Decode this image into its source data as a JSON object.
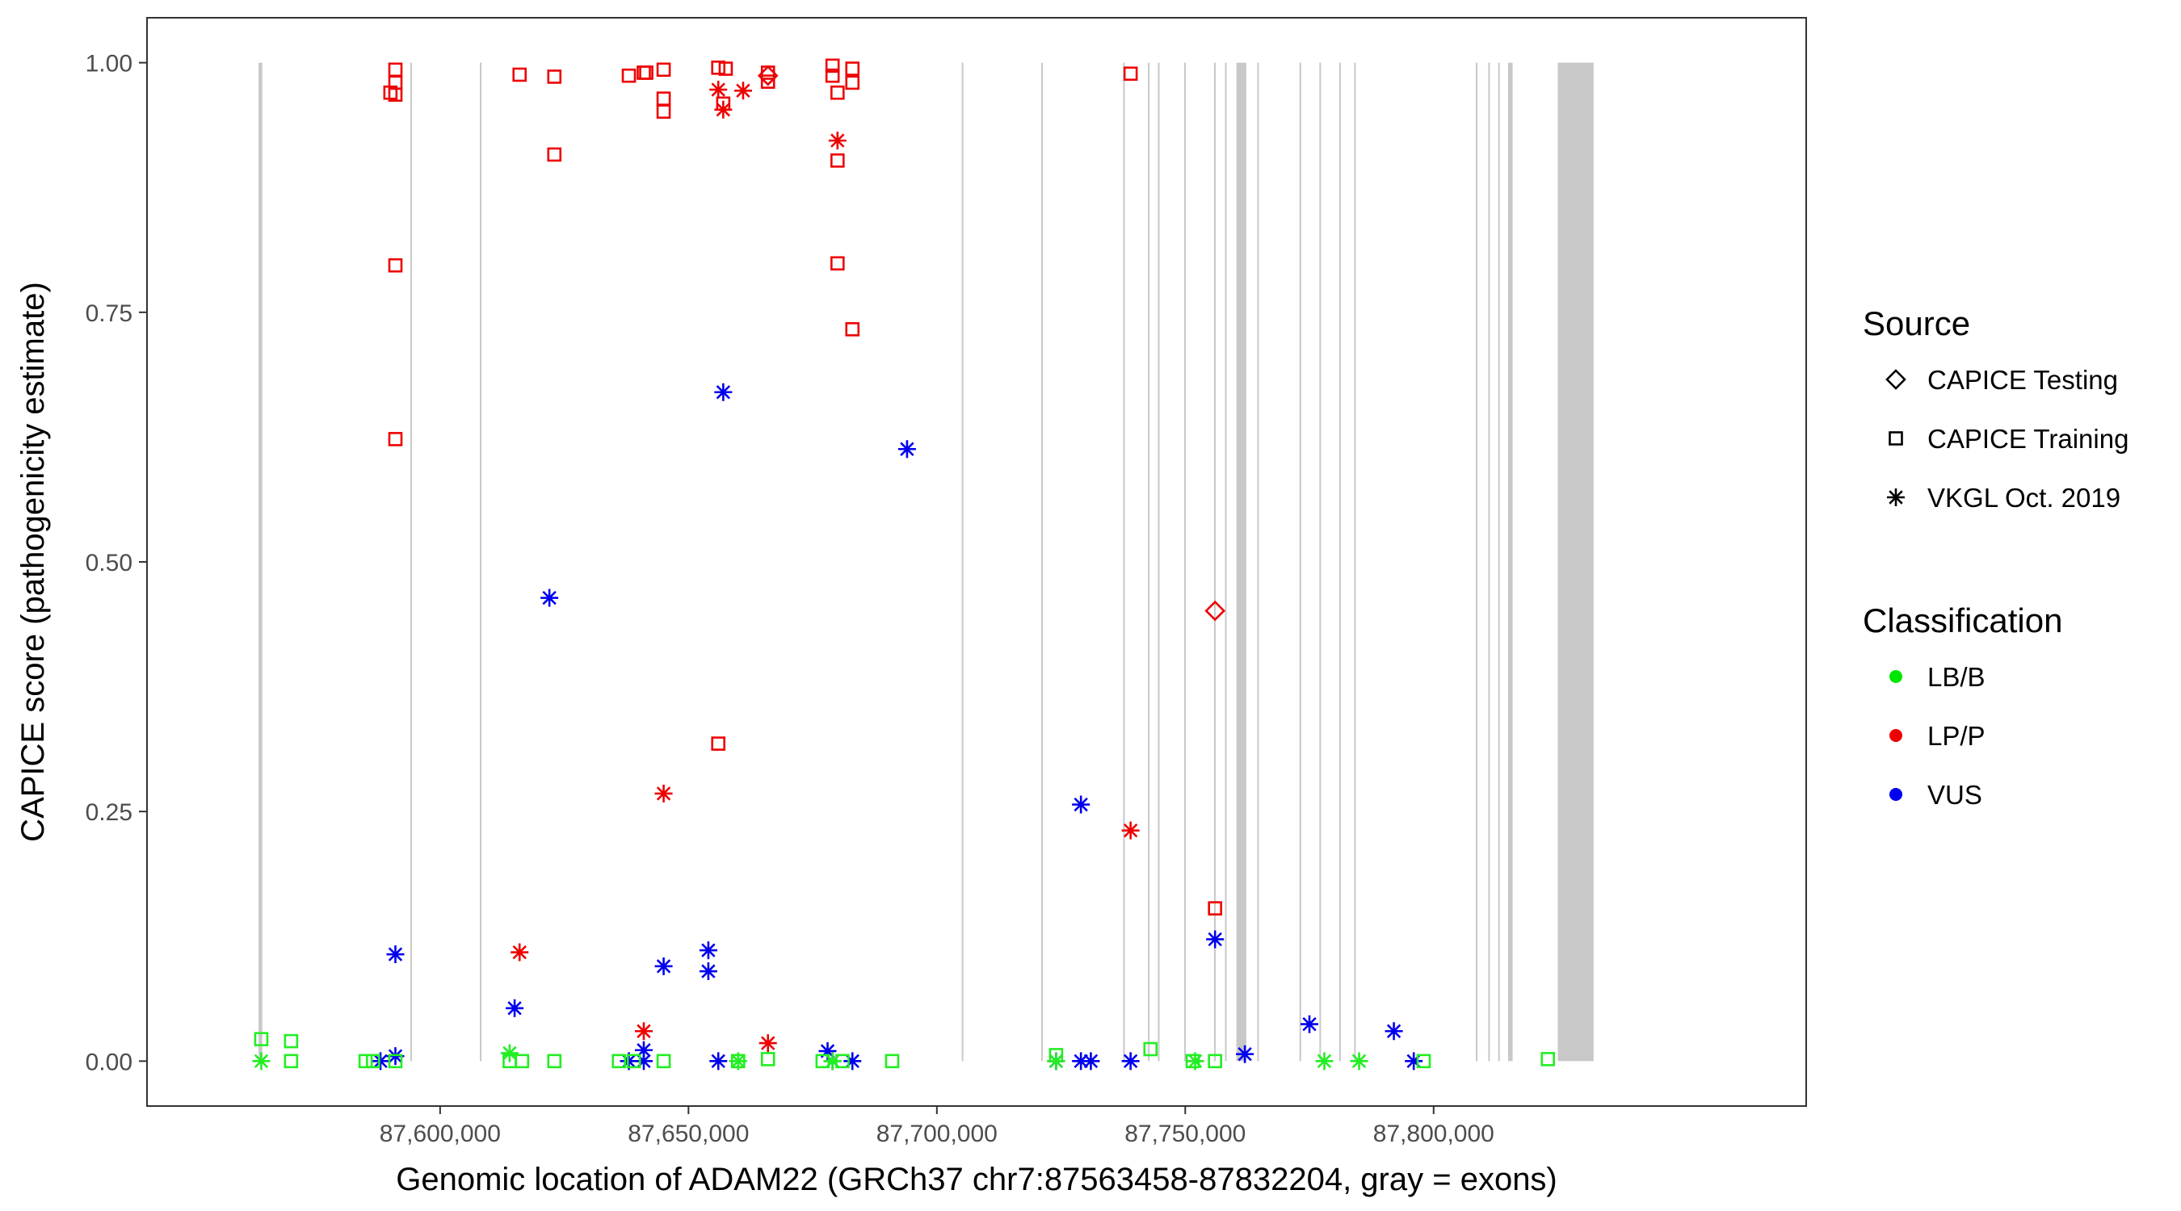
{
  "chart_data": {
    "type": "scatter",
    "xlabel": "Genomic location of ADAM22 (GRCh37 chr7:87563458-87832204, gray = exons)",
    "ylabel": "CAPICE score (pathogenicity estimate)",
    "xlim": [
      87541000,
      87875000
    ],
    "ylim": [
      -0.045,
      1.045
    ],
    "x_ticks": [
      87600000,
      87650000,
      87700000,
      87750000,
      87800000
    ],
    "x_tick_labels": [
      "87,600,000",
      "87,650,000",
      "87,700,000",
      "87,750,000",
      "87,800,000"
    ],
    "y_ticks": [
      0,
      0.25,
      0.5,
      0.75,
      1
    ],
    "y_tick_labels": [
      "0.00",
      "0.25",
      "0.50",
      "0.75",
      "1.00"
    ],
    "grid": false,
    "legend_position": "right",
    "exons": [
      [
        87563458,
        87564200
      ],
      [
        87594000,
        87594150
      ],
      [
        87608000,
        87608150
      ],
      [
        87705000,
        87705150
      ],
      [
        87721000,
        87721100
      ],
      [
        87737500,
        87737650
      ],
      [
        87742500,
        87742650
      ],
      [
        87744500,
        87744650
      ],
      [
        87749800,
        87749950
      ],
      [
        87755800,
        87755950
      ],
      [
        87758000,
        87758150
      ],
      [
        87760300,
        87762300
      ],
      [
        87764500,
        87764650
      ],
      [
        87773000,
        87773150
      ],
      [
        87777000,
        87777150
      ],
      [
        87781000,
        87781150
      ],
      [
        87784000,
        87784150
      ],
      [
        87808500,
        87808650
      ],
      [
        87811000,
        87811150
      ],
      [
        87813000,
        87813150
      ],
      [
        87815000,
        87815900
      ],
      [
        87825000,
        87832204
      ]
    ],
    "legend": {
      "source": {
        "title": "Source",
        "items": [
          {
            "label": "CAPICE Testing",
            "shape": "diamond"
          },
          {
            "label": "CAPICE Training",
            "shape": "square"
          },
          {
            "label": "VKGL Oct. 2019",
            "shape": "star"
          }
        ]
      },
      "classification": {
        "title": "Classification",
        "items": [
          {
            "label": "LB/B",
            "color": "#00e600"
          },
          {
            "label": "LP/P",
            "color": "#ee0000"
          },
          {
            "label": "VUS",
            "color": "#0000ee"
          }
        ]
      }
    },
    "colors": {
      "LB/B": "#22ee22",
      "LP/P": "#ee0000",
      "VUS": "#0000ee"
    },
    "points": [
      {
        "x": 87590000,
        "y": 0.97,
        "source": "CAPICE Training",
        "class": "LP/P"
      },
      {
        "x": 87591000,
        "y": 0.993,
        "source": "CAPICE Training",
        "class": "LP/P"
      },
      {
        "x": 87591000,
        "y": 0.98,
        "source": "CAPICE Training",
        "class": "LP/P"
      },
      {
        "x": 87591000,
        "y": 0.968,
        "source": "CAPICE Training",
        "class": "LP/P"
      },
      {
        "x": 87591000,
        "y": 0.797,
        "source": "CAPICE Training",
        "class": "LP/P"
      },
      {
        "x": 87591000,
        "y": 0.623,
        "source": "CAPICE Training",
        "class": "LP/P"
      },
      {
        "x": 87616000,
        "y": 0.988,
        "source": "CAPICE Training",
        "class": "LP/P"
      },
      {
        "x": 87623000,
        "y": 0.986,
        "source": "CAPICE Training",
        "class": "LP/P"
      },
      {
        "x": 87623000,
        "y": 0.908,
        "source": "CAPICE Training",
        "class": "LP/P"
      },
      {
        "x": 87638000,
        "y": 0.987,
        "source": "CAPICE Training",
        "class": "LP/P"
      },
      {
        "x": 87641000,
        "y": 0.99,
        "source": "CAPICE Training",
        "class": "LP/P"
      },
      {
        "x": 87641500,
        "y": 0.99,
        "source": "CAPICE Training",
        "class": "LP/P"
      },
      {
        "x": 87645000,
        "y": 0.993,
        "source": "CAPICE Training",
        "class": "LP/P"
      },
      {
        "x": 87645000,
        "y": 0.964,
        "source": "CAPICE Training",
        "class": "LP/P"
      },
      {
        "x": 87645000,
        "y": 0.951,
        "source": "CAPICE Training",
        "class": "LP/P"
      },
      {
        "x": 87656000,
        "y": 0.995,
        "source": "CAPICE Training",
        "class": "LP/P"
      },
      {
        "x": 87657500,
        "y": 0.994,
        "source": "CAPICE Training",
        "class": "LP/P"
      },
      {
        "x": 87657000,
        "y": 0.959,
        "source": "CAPICE Training",
        "class": "LP/P"
      },
      {
        "x": 87666000,
        "y": 0.99,
        "source": "CAPICE Training",
        "class": "LP/P"
      },
      {
        "x": 87666000,
        "y": 0.981,
        "source": "CAPICE Training",
        "class": "LP/P"
      },
      {
        "x": 87679000,
        "y": 0.997,
        "source": "CAPICE Training",
        "class": "LP/P"
      },
      {
        "x": 87679000,
        "y": 0.987,
        "source": "CAPICE Training",
        "class": "LP/P"
      },
      {
        "x": 87683000,
        "y": 0.994,
        "source": "CAPICE Training",
        "class": "LP/P"
      },
      {
        "x": 87683000,
        "y": 0.98,
        "source": "CAPICE Training",
        "class": "LP/P"
      },
      {
        "x": 87680000,
        "y": 0.97,
        "source": "CAPICE Training",
        "class": "LP/P"
      },
      {
        "x": 87680000,
        "y": 0.902,
        "source": "CAPICE Training",
        "class": "LP/P"
      },
      {
        "x": 87680000,
        "y": 0.799,
        "source": "CAPICE Training",
        "class": "LP/P"
      },
      {
        "x": 87683000,
        "y": 0.733,
        "source": "CAPICE Training",
        "class": "LP/P"
      },
      {
        "x": 87739000,
        "y": 0.989,
        "source": "CAPICE Training",
        "class": "LP/P"
      },
      {
        "x": 87656000,
        "y": 0.318,
        "source": "CAPICE Training",
        "class": "LP/P"
      },
      {
        "x": 87756000,
        "y": 0.153,
        "source": "CAPICE Training",
        "class": "LP/P"
      },
      {
        "x": 87756000,
        "y": 0.451,
        "source": "CAPICE Testing",
        "class": "LP/P"
      },
      {
        "x": 87666000,
        "y": 0.987,
        "source": "CAPICE Testing",
        "class": "LP/P"
      },
      {
        "x": 87656000,
        "y": 0.973,
        "source": "VKGL Oct. 2019",
        "class": "LP/P"
      },
      {
        "x": 87657000,
        "y": 0.953,
        "source": "VKGL Oct. 2019",
        "class": "LP/P"
      },
      {
        "x": 87661000,
        "y": 0.972,
        "source": "VKGL Oct. 2019",
        "class": "LP/P"
      },
      {
        "x": 87680000,
        "y": 0.922,
        "source": "VKGL Oct. 2019",
        "class": "LP/P"
      },
      {
        "x": 87645000,
        "y": 0.268,
        "source": "VKGL Oct. 2019",
        "class": "LP/P"
      },
      {
        "x": 87739000,
        "y": 0.231,
        "source": "VKGL Oct. 2019",
        "class": "LP/P"
      },
      {
        "x": 87616000,
        "y": 0.109,
        "source": "VKGL Oct. 2019",
        "class": "LP/P"
      },
      {
        "x": 87641000,
        "y": 0.03,
        "source": "VKGL Oct. 2019",
        "class": "LP/P"
      },
      {
        "x": 87666000,
        "y": 0.018,
        "source": "VKGL Oct. 2019",
        "class": "LP/P"
      },
      {
        "x": 87657000,
        "y": 0.67,
        "source": "VKGL Oct. 2019",
        "class": "VUS"
      },
      {
        "x": 87694000,
        "y": 0.613,
        "source": "VKGL Oct. 2019",
        "class": "VUS"
      },
      {
        "x": 87622000,
        "y": 0.464,
        "source": "VKGL Oct. 2019",
        "class": "VUS"
      },
      {
        "x": 87729000,
        "y": 0.257,
        "source": "VKGL Oct. 2019",
        "class": "VUS"
      },
      {
        "x": 87756000,
        "y": 0.122,
        "source": "VKGL Oct. 2019",
        "class": "VUS"
      },
      {
        "x": 87654000,
        "y": 0.111,
        "source": "VKGL Oct. 2019",
        "class": "VUS"
      },
      {
        "x": 87591000,
        "y": 0.107,
        "source": "VKGL Oct. 2019",
        "class": "VUS"
      },
      {
        "x": 87645000,
        "y": 0.095,
        "source": "VKGL Oct. 2019",
        "class": "VUS"
      },
      {
        "x": 87654000,
        "y": 0.09,
        "source": "VKGL Oct. 2019",
        "class": "VUS"
      },
      {
        "x": 87615000,
        "y": 0.053,
        "source": "VKGL Oct. 2019",
        "class": "VUS"
      },
      {
        "x": 87775000,
        "y": 0.037,
        "source": "VKGL Oct. 2019",
        "class": "VUS"
      },
      {
        "x": 87792000,
        "y": 0.03,
        "source": "VKGL Oct. 2019",
        "class": "VUS"
      },
      {
        "x": 87641000,
        "y": 0.011,
        "source": "VKGL Oct. 2019",
        "class": "VUS"
      },
      {
        "x": 87678000,
        "y": 0.01,
        "source": "VKGL Oct. 2019",
        "class": "VUS"
      },
      {
        "x": 87762000,
        "y": 0.007,
        "source": "VKGL Oct. 2019",
        "class": "VUS"
      },
      {
        "x": 87591000,
        "y": 0.005,
        "source": "VKGL Oct. 2019",
        "class": "VUS"
      },
      {
        "x": 87588000,
        "y": 0.0,
        "source": "VKGL Oct. 2019",
        "class": "VUS"
      },
      {
        "x": 87638000,
        "y": 0.0,
        "source": "VKGL Oct. 2019",
        "class": "VUS"
      },
      {
        "x": 87641000,
        "y": 0.0,
        "source": "VKGL Oct. 2019",
        "class": "VUS"
      },
      {
        "x": 87656000,
        "y": 0.0,
        "source": "VKGL Oct. 2019",
        "class": "VUS"
      },
      {
        "x": 87679000,
        "y": 0.0,
        "source": "VKGL Oct. 2019",
        "class": "VUS"
      },
      {
        "x": 87683000,
        "y": 0.0,
        "source": "VKGL Oct. 2019",
        "class": "VUS"
      },
      {
        "x": 87724000,
        "y": 0.0,
        "source": "VKGL Oct. 2019",
        "class": "VUS"
      },
      {
        "x": 87729000,
        "y": 0.0,
        "source": "VKGL Oct. 2019",
        "class": "VUS"
      },
      {
        "x": 87731000,
        "y": 0.0,
        "source": "VKGL Oct. 2019",
        "class": "VUS"
      },
      {
        "x": 87739000,
        "y": 0.0,
        "source": "VKGL Oct. 2019",
        "class": "VUS"
      },
      {
        "x": 87796000,
        "y": 0.0,
        "source": "VKGL Oct. 2019",
        "class": "VUS"
      },
      {
        "x": 87564000,
        "y": 0.0,
        "source": "VKGL Oct. 2019",
        "class": "LB/B"
      },
      {
        "x": 87614000,
        "y": 0.008,
        "source": "VKGL Oct. 2019",
        "class": "LB/B"
      },
      {
        "x": 87660000,
        "y": 0.0,
        "source": "VKGL Oct. 2019",
        "class": "LB/B"
      },
      {
        "x": 87679000,
        "y": 0.0,
        "source": "VKGL Oct. 2019",
        "class": "LB/B"
      },
      {
        "x": 87724000,
        "y": 0.0,
        "source": "VKGL Oct. 2019",
        "class": "LB/B"
      },
      {
        "x": 87752000,
        "y": 0.0,
        "source": "VKGL Oct. 2019",
        "class": "LB/B"
      },
      {
        "x": 87778000,
        "y": 0.0,
        "source": "VKGL Oct. 2019",
        "class": "LB/B"
      },
      {
        "x": 87785000,
        "y": 0.0,
        "source": "VKGL Oct. 2019",
        "class": "LB/B"
      },
      {
        "x": 87564000,
        "y": 0.022,
        "source": "CAPICE Training",
        "class": "LB/B"
      },
      {
        "x": 87570000,
        "y": 0.02,
        "source": "CAPICE Training",
        "class": "LB/B"
      },
      {
        "x": 87570000,
        "y": 0.0,
        "source": "CAPICE Training",
        "class": "LB/B"
      },
      {
        "x": 87585000,
        "y": 0.0,
        "source": "CAPICE Training",
        "class": "LB/B"
      },
      {
        "x": 87586500,
        "y": 0.0,
        "source": "CAPICE Training",
        "class": "LB/B"
      },
      {
        "x": 87591000,
        "y": 0.0,
        "source": "CAPICE Training",
        "class": "LB/B"
      },
      {
        "x": 87614000,
        "y": 0.0,
        "source": "CAPICE Training",
        "class": "LB/B"
      },
      {
        "x": 87616500,
        "y": 0.0,
        "source": "CAPICE Training",
        "class": "LB/B"
      },
      {
        "x": 87623000,
        "y": 0.0,
        "source": "CAPICE Training",
        "class": "LB/B"
      },
      {
        "x": 87636000,
        "y": 0.0,
        "source": "CAPICE Training",
        "class": "LB/B"
      },
      {
        "x": 87639000,
        "y": 0.0,
        "source": "CAPICE Training",
        "class": "LB/B"
      },
      {
        "x": 87645000,
        "y": 0.0,
        "source": "CAPICE Training",
        "class": "LB/B"
      },
      {
        "x": 87660000,
        "y": 0.0,
        "source": "CAPICE Training",
        "class": "LB/B"
      },
      {
        "x": 87666000,
        "y": 0.002,
        "source": "CAPICE Training",
        "class": "LB/B"
      },
      {
        "x": 87677000,
        "y": 0.0,
        "source": "CAPICE Training",
        "class": "LB/B"
      },
      {
        "x": 87681000,
        "y": 0.0,
        "source": "CAPICE Training",
        "class": "LB/B"
      },
      {
        "x": 87691000,
        "y": 0.0,
        "source": "CAPICE Training",
        "class": "LB/B"
      },
      {
        "x": 87724000,
        "y": 0.006,
        "source": "CAPICE Training",
        "class": "LB/B"
      },
      {
        "x": 87743000,
        "y": 0.012,
        "source": "CAPICE Training",
        "class": "LB/B"
      },
      {
        "x": 87751500,
        "y": 0.0,
        "source": "CAPICE Training",
        "class": "LB/B"
      },
      {
        "x": 87756000,
        "y": 0.0,
        "source": "CAPICE Training",
        "class": "LB/B"
      },
      {
        "x": 87798000,
        "y": 0.0,
        "source": "CAPICE Training",
        "class": "LB/B"
      },
      {
        "x": 87823000,
        "y": 0.002,
        "source": "CAPICE Training",
        "class": "LB/B"
      }
    ]
  }
}
